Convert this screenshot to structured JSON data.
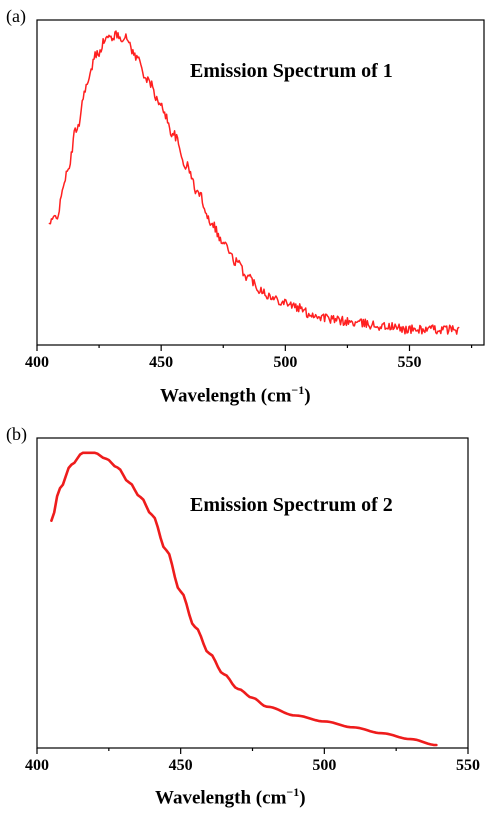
{
  "chart_data": [
    {
      "type": "line",
      "panel_label": "(a)",
      "annotation": "Emission Spectrum of 1",
      "xlabel_main": "Wavelength (cm",
      "xlabel_sup": "−1",
      "xlabel_end": ")",
      "ylabel": "",
      "xlim": [
        400,
        580
      ],
      "ylim": [
        0,
        1.05
      ],
      "xticks": [
        400,
        450,
        500,
        550
      ],
      "noisy": true,
      "color": "#ff2020",
      "series": [
        {
          "x": [
            405,
            408,
            412,
            416,
            420,
            424,
            428,
            432,
            436,
            440,
            445,
            450,
            455,
            460,
            465,
            470,
            475,
            480,
            485,
            490,
            495,
            500,
            505,
            510,
            515,
            520,
            530,
            540,
            550,
            560,
            570
          ],
          "y": [
            0.39,
            0.42,
            0.55,
            0.7,
            0.84,
            0.94,
            0.99,
            1.0,
            0.99,
            0.93,
            0.85,
            0.77,
            0.68,
            0.58,
            0.49,
            0.4,
            0.33,
            0.27,
            0.22,
            0.18,
            0.15,
            0.14,
            0.12,
            0.1,
            0.09,
            0.08,
            0.07,
            0.06,
            0.05,
            0.05,
            0.05
          ]
        }
      ]
    },
    {
      "type": "line",
      "panel_label": "(b)",
      "annotation": "Emission Spectrum of 2",
      "xlabel_main": "Wavelength (cm",
      "xlabel_sup": "−1",
      "xlabel_end": ")",
      "ylabel": "",
      "xlim": [
        400,
        550
      ],
      "ylim": [
        0,
        1.05
      ],
      "xticks": [
        400,
        450,
        500,
        550
      ],
      "noisy": false,
      "color": "#ee1c1c",
      "series": [
        {
          "x": [
            405,
            408,
            412,
            416,
            420,
            424,
            428,
            432,
            436,
            440,
            445,
            450,
            455,
            460,
            465,
            470,
            475,
            480,
            490,
            500,
            510,
            520,
            530,
            539
          ],
          "y": [
            0.77,
            0.88,
            0.96,
            1.0,
            1.0,
            0.98,
            0.95,
            0.9,
            0.85,
            0.79,
            0.67,
            0.53,
            0.41,
            0.32,
            0.25,
            0.2,
            0.17,
            0.14,
            0.11,
            0.09,
            0.07,
            0.05,
            0.03,
            0.01
          ]
        }
      ]
    }
  ]
}
